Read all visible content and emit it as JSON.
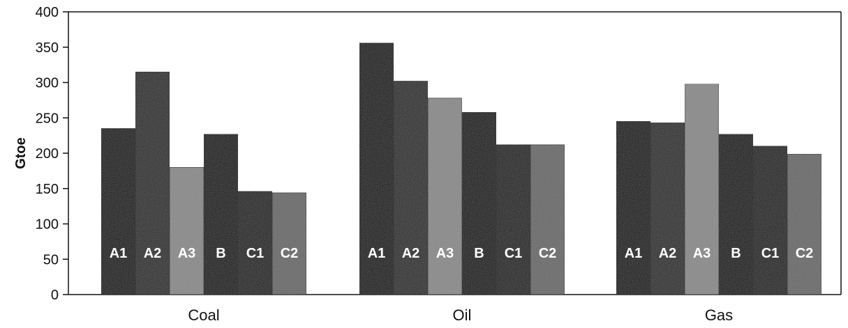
{
  "chart_data": {
    "type": "bar",
    "title": "",
    "xlabel": "",
    "ylabel": "Gtoe",
    "ylim": [
      0,
      400
    ],
    "yticks": [
      0,
      50,
      100,
      150,
      200,
      250,
      300,
      350,
      400
    ],
    "categories": [
      "Coal",
      "Oil",
      "Gas"
    ],
    "series": [
      {
        "name": "A1",
        "values": [
          235,
          356,
          245
        ],
        "color": "#0d0d0d"
      },
      {
        "name": "A2",
        "values": [
          315,
          302,
          243
        ],
        "color": "#2c2c2c"
      },
      {
        "name": "A3",
        "values": [
          180,
          278,
          298
        ],
        "color": "#8a8a8a"
      },
      {
        "name": "B",
        "values": [
          227,
          258,
          227
        ],
        "color": "#101010"
      },
      {
        "name": "C1",
        "values": [
          146,
          212,
          210
        ],
        "color": "#1e1e1e"
      },
      {
        "name": "C2",
        "values": [
          144,
          212,
          199
        ],
        "color": "#6a6a6a"
      }
    ],
    "grid": false,
    "legend": "none"
  }
}
